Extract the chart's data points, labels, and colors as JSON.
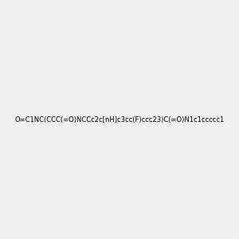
{
  "smiles": "O=C1NC(CCC(=O)NCCc2c[nH]c3cc(F)ccc23)C(=O)N1c1ccccc1",
  "title": "",
  "bg_color": "#f0f0f0",
  "img_size": [
    300,
    300
  ]
}
